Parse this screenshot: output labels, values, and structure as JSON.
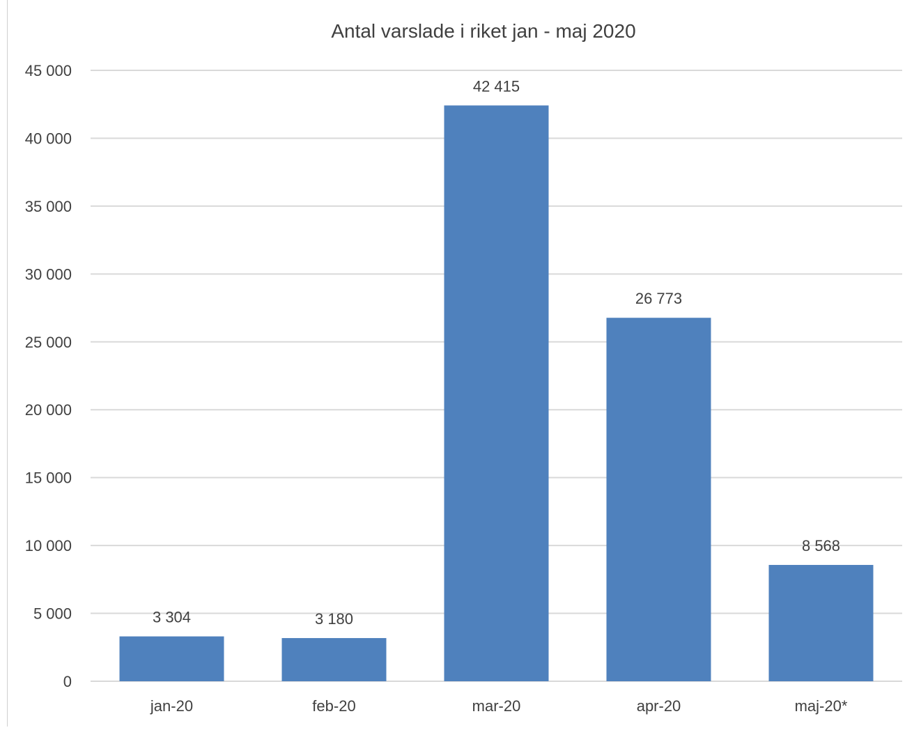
{
  "chart_data": {
    "type": "bar",
    "title": "Antal varslade i riket jan - maj 2020",
    "xlabel": "",
    "ylabel": "",
    "categories": [
      "jan-20",
      "feb-20",
      "mar-20",
      "apr-20",
      "maj-20*"
    ],
    "values": [
      3304,
      3180,
      42415,
      26773,
      8568
    ],
    "data_labels": [
      "3 304",
      "3 180",
      "42 415",
      "26 773",
      "8 568"
    ],
    "ylim": [
      0,
      45000
    ],
    "yticks": [
      0,
      5000,
      10000,
      15000,
      20000,
      25000,
      30000,
      35000,
      40000,
      45000
    ],
    "ytick_labels": [
      "0",
      "5 000",
      "10 000",
      "15 000",
      "20 000",
      "25 000",
      "30 000",
      "35 000",
      "40 000",
      "45 000"
    ],
    "grid": true,
    "legend": "none",
    "colors": {
      "bar": "#4f81bd",
      "grid": "#d9d9d9",
      "text": "#404040"
    }
  }
}
